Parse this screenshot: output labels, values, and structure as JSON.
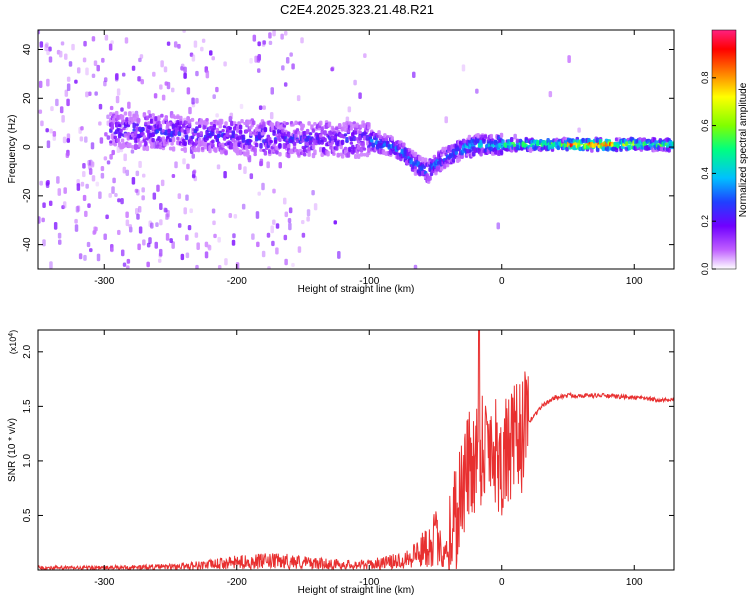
{
  "title": "C2E4.2025.323.21.48.R21",
  "chart_data": [
    {
      "type": "heatmap",
      "title": "C2E4.2025.323.21.48.R21",
      "xlabel": "Height of straight line (km)",
      "ylabel": "Frequency (Hz)",
      "xlim": [
        -350,
        130
      ],
      "ylim": [
        -50,
        48
      ],
      "xticks": [
        -300,
        -200,
        -100,
        0,
        100
      ],
      "xtick_labels": [
        "-300",
        "-200",
        "-100",
        "0",
        "100"
      ],
      "yticks": [
        -40,
        -20,
        0,
        20,
        40
      ],
      "ytick_labels": [
        "-40",
        "-20",
        "0",
        "20",
        "40"
      ],
      "colorbar": {
        "label": "Normalized spectral amplitude",
        "range": [
          0,
          1
        ],
        "ticks": [
          0.0,
          0.2,
          0.4,
          0.6,
          0.8
        ],
        "tick_labels": [
          "0.0",
          "0.2",
          "0.4",
          "0.6",
          "0.8"
        ],
        "colormap": [
          "#ffffff",
          "#c060ff",
          "#7000ff",
          "#2040ff",
          "#00c0ff",
          "#00ff80",
          "#80ff00",
          "#ffff00",
          "#ff8000",
          "#ff0000",
          "#ff2080"
        ]
      },
      "signal_trace": {
        "x": [
          -290,
          -250,
          -200,
          -150,
          -100,
          -80,
          -65,
          -55,
          -45,
          -35,
          -25,
          -15,
          0,
          50,
          100,
          130
        ],
        "y": [
          7,
          6,
          4,
          3,
          3,
          0,
          -7,
          -10,
          -5,
          -2,
          0,
          1,
          1,
          1,
          1,
          1
        ]
      }
    },
    {
      "type": "line",
      "xlabel": "Height of straight line (km)",
      "ylabel": "SNR (10 * v/v)",
      "y_multiplier": "(x10^4)",
      "xlim": [
        -350,
        130
      ],
      "ylim": [
        0,
        2.2
      ],
      "xticks": [
        -300,
        -200,
        -100,
        0,
        100
      ],
      "xtick_labels": [
        "-300",
        "-200",
        "-100",
        "0",
        "100"
      ],
      "yticks": [
        0.5,
        1.0,
        1.5,
        2.0
      ],
      "ytick_labels": [
        "0.5",
        "1.0",
        "1.5",
        "2.0"
      ],
      "color": "#e83030",
      "series": [
        {
          "name": "SNR",
          "x": [
            -350,
            -300,
            -250,
            -220,
            -200,
            -180,
            -160,
            -140,
            -120,
            -100,
            -80,
            -70,
            -60,
            -50,
            -45,
            -40,
            -35,
            -30,
            -25,
            -20,
            -15,
            -10,
            -5,
            0,
            10,
            20,
            30,
            40,
            50,
            75,
            100,
            130
          ],
          "y": [
            0.02,
            0.02,
            0.03,
            0.05,
            0.07,
            0.08,
            0.08,
            0.06,
            0.05,
            0.05,
            0.08,
            0.12,
            0.18,
            0.3,
            0.15,
            0.25,
            0.5,
            0.75,
            0.95,
            1.05,
            1.15,
            1.2,
            1.12,
            1.0,
            1.15,
            1.35,
            1.5,
            1.58,
            1.6,
            1.6,
            1.58,
            1.55
          ]
        }
      ]
    }
  ]
}
